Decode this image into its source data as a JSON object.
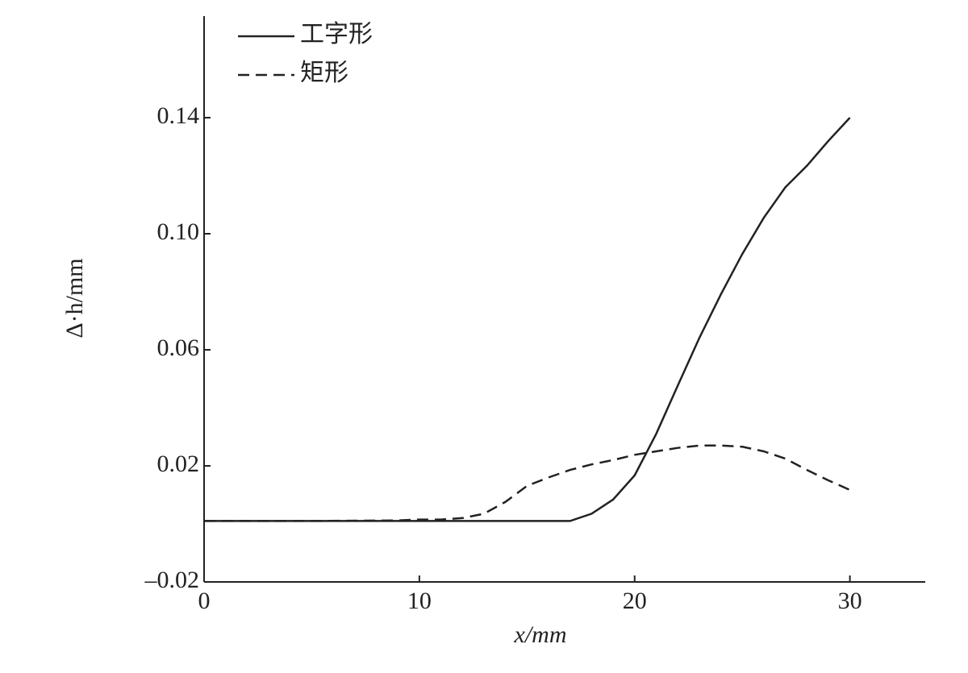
{
  "chart_data": {
    "type": "line",
    "xlabel": "x/mm",
    "ylabel": "Δ·h/mm",
    "x": [
      0,
      5,
      9,
      10,
      11,
      12,
      13,
      14,
      15,
      16,
      17,
      18,
      19,
      20,
      21,
      22,
      23,
      24,
      25,
      26,
      27,
      28,
      29,
      30
    ],
    "series": [
      {
        "name": "工字形",
        "color": "#222222",
        "line_style": "solid",
        "values": [
          0.001,
          0.001,
          0.001,
          0.001,
          0.001,
          0.001,
          0.001,
          0.001,
          0.001,
          0.001,
          0.001,
          0.0035,
          0.0084,
          0.0167,
          0.031,
          0.0476,
          0.064,
          0.079,
          0.093,
          0.1055,
          0.116,
          0.1234,
          0.132,
          0.14
        ]
      },
      {
        "name": "矩形",
        "color": "#222222",
        "line_style": "dashed",
        "values": [
          0.001,
          0.001,
          0.0012,
          0.0015,
          0.0015,
          0.002,
          0.0035,
          0.0076,
          0.0131,
          0.016,
          0.0186,
          0.0205,
          0.022,
          0.0238,
          0.025,
          0.0262,
          0.027,
          0.027,
          0.0266,
          0.025,
          0.0225,
          0.0186,
          0.015,
          0.0117
        ]
      }
    ],
    "xlim": [
      0,
      33.5
    ],
    "xticks": [
      0,
      10,
      20,
      30
    ],
    "ylim": [
      -0.02,
      0.175
    ],
    "yticks": [
      {
        "value": -0.02,
        "label": "–0.02"
      },
      0.02,
      0.06,
      {
        "value": 0.1,
        "label": "0.10"
      },
      0.14
    ],
    "legend": "upper-left",
    "grid": false
  }
}
